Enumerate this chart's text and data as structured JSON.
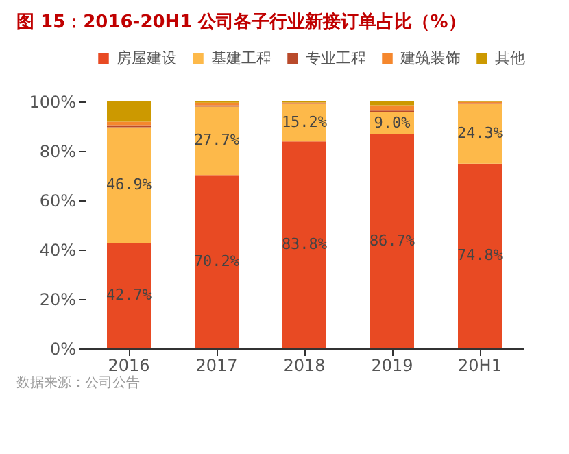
{
  "chart_data": {
    "type": "bar",
    "stacked": true,
    "title": "图 15：2016-20H1 公司各子行业新接订单占比（%）",
    "categories": [
      "2016",
      "2017",
      "2018",
      "2019",
      "20H1"
    ],
    "series": [
      {
        "name": "房屋建设",
        "color": "#e84a23",
        "values": [
          42.7,
          70.2,
          83.8,
          86.7,
          74.8
        ],
        "value_labels": [
          "42.7%",
          "70.2%",
          "83.8%",
          "86.7%",
          "74.8%"
        ]
      },
      {
        "name": "基建工程",
        "color": "#fdb94a",
        "values": [
          46.9,
          27.7,
          15.2,
          9.0,
          24.3
        ],
        "value_labels": [
          "46.9%",
          "27.7%",
          "15.2%",
          "9.0%",
          "24.3%"
        ]
      },
      {
        "name": "专业工程",
        "color": "#b94a2b",
        "values": [
          0.8,
          0.6,
          0.3,
          0.6,
          0.2
        ]
      },
      {
        "name": "建筑装饰",
        "color": "#f5872d",
        "values": [
          1.4,
          1.0,
          0.3,
          2.2,
          0.5
        ]
      },
      {
        "name": "其他",
        "color": "#cc9900",
        "values": [
          8.2,
          0.5,
          0.4,
          1.5,
          0.2
        ]
      }
    ],
    "ylim": [
      0,
      100
    ],
    "yticks": [
      {
        "value": 0,
        "label": "0%"
      },
      {
        "value": 20,
        "label": "20%"
      },
      {
        "value": 40,
        "label": "40%"
      },
      {
        "value": 60,
        "label": "60%"
      },
      {
        "value": 80,
        "label": "80%"
      },
      {
        "value": 100,
        "label": "100%"
      }
    ],
    "grid": false,
    "legend": "top",
    "annotations": [
      "数据来源：公司公告"
    ]
  }
}
